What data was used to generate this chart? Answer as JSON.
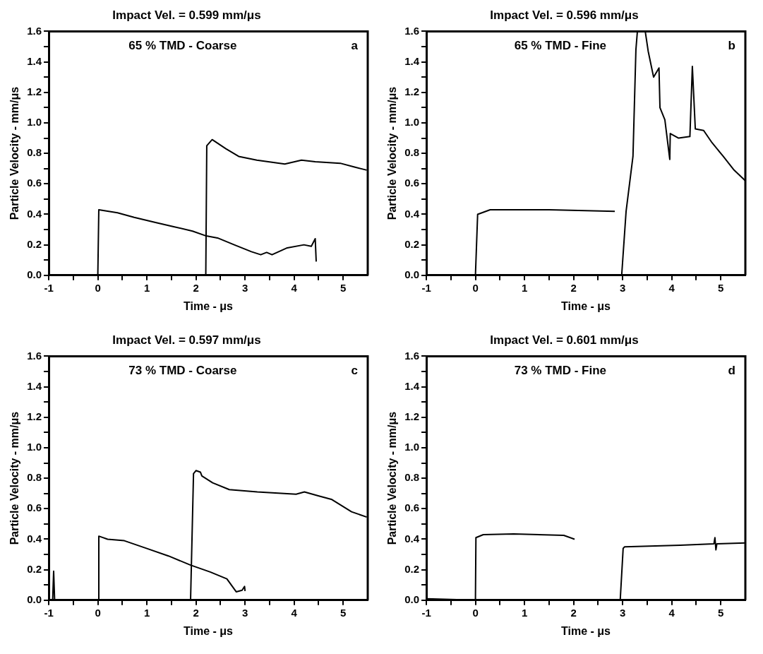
{
  "chart_data": [
    {
      "type": "line",
      "title": "Impact Vel. = 0.599 mm/μs",
      "xlabel": "Time - μs",
      "ylabel": "Particle Velocity - mm/μs",
      "annotations": [
        "65 % TMD - Coarse",
        "a"
      ],
      "xlim": [
        -1,
        5.5
      ],
      "ylim": [
        0,
        1.6
      ],
      "xticks": [
        -1,
        {
          "value": -0.5,
          "label": null
        },
        0,
        {
          "value": 0.5,
          "label": null
        },
        1,
        {
          "value": 1.5,
          "label": null
        },
        2,
        {
          "value": 2.5,
          "label": null
        },
        3,
        {
          "value": 3.5,
          "label": null
        },
        4,
        {
          "value": 4.5,
          "label": null
        },
        5
      ],
      "yticks": [
        {
          "value": 0,
          "label": "0.0"
        },
        {
          "value": 0.1,
          "label": null
        },
        0.2,
        {
          "value": 0.3,
          "label": null
        },
        0.4,
        {
          "value": 0.5,
          "label": null
        },
        0.6,
        {
          "value": 0.7,
          "label": null
        },
        0.8,
        {
          "value": 0.9,
          "label": null
        },
        {
          "value": 1,
          "label": "1.0"
        },
        {
          "value": 1.1,
          "label": null
        },
        1.2,
        {
          "value": 1.3,
          "label": null
        },
        1.4,
        {
          "value": 1.5,
          "label": null
        },
        1.6
      ],
      "series": [
        {
          "color": "#000000",
          "x": [
            -1,
            0,
            0.02,
            0.4,
            0.74,
            1.19,
            1.53,
            1.93,
            2.19,
            2.44,
            2.78,
            3.13,
            3.32,
            3.44,
            3.55,
            3.86,
            4.2,
            4.35,
            4.43,
            4.45
          ],
          "values": [
            0,
            0,
            0.43,
            0.41,
            0.38,
            0.345,
            0.32,
            0.29,
            0.26,
            0.245,
            0.2,
            0.155,
            0.135,
            0.15,
            0.135,
            0.18,
            0.2,
            0.19,
            0.24,
            0.09
          ]
        },
        {
          "color": "#000000",
          "x": [
            -1,
            2.2,
            2.22,
            2.33,
            2.61,
            2.87,
            3.24,
            3.81,
            4.15,
            4.43,
            4.94,
            5.23,
            5.48
          ],
          "values": [
            0,
            0,
            0.85,
            0.89,
            0.83,
            0.78,
            0.755,
            0.73,
            0.755,
            0.745,
            0.735,
            0.71,
            0.69
          ]
        }
      ]
    },
    {
      "type": "line",
      "title": "Impact Vel. = 0.596 mm/μs",
      "xlabel": "Time - μs",
      "ylabel": "Particle Velocity - mm/μs",
      "annotations": [
        "65 % TMD - Fine",
        "b"
      ],
      "xlim": [
        -1,
        5.5
      ],
      "ylim": [
        0,
        1.6
      ],
      "xticks": [
        -1,
        {
          "value": -0.5,
          "label": null
        },
        0,
        {
          "value": 0.5,
          "label": null
        },
        1,
        {
          "value": 1.5,
          "label": null
        },
        2,
        {
          "value": 2.5,
          "label": null
        },
        3,
        {
          "value": 3.5,
          "label": null
        },
        4,
        {
          "value": 4.5,
          "label": null
        },
        5
      ],
      "yticks": [
        {
          "value": 0,
          "label": "0.0"
        },
        {
          "value": 0.1,
          "label": null
        },
        0.2,
        {
          "value": 0.3,
          "label": null
        },
        0.4,
        {
          "value": 0.5,
          "label": null
        },
        0.6,
        {
          "value": 0.7,
          "label": null
        },
        0.8,
        {
          "value": 0.9,
          "label": null
        },
        {
          "value": 1,
          "label": "1.0"
        },
        {
          "value": 1.1,
          "label": null
        },
        1.2,
        {
          "value": 1.3,
          "label": null
        },
        1.4,
        {
          "value": 1.5,
          "label": null
        },
        1.6
      ],
      "series": [
        {
          "color": "#000000",
          "x": [
            -1,
            0,
            0.045,
            0.3,
            1.5,
            2.84
          ],
          "values": [
            0,
            0,
            0.4,
            0.43,
            0.43,
            0.42
          ]
        },
        {
          "color": "#000000",
          "x": [
            -1,
            2.98,
            3.07,
            3.21,
            3.27,
            3.3,
            3.46,
            3.52,
            3.63,
            3.74,
            3.76,
            3.86,
            3.96,
            3.97,
            4.14,
            4.37,
            4.42,
            4.48,
            4.65,
            4.82,
            5.05,
            5.27,
            5.5
          ],
          "values": [
            0,
            0,
            0.42,
            0.78,
            1.48,
            1.6,
            1.6,
            1.47,
            1.3,
            1.36,
            1.1,
            1.02,
            0.76,
            0.93,
            0.9,
            0.91,
            1.37,
            0.96,
            0.95,
            0.87,
            0.78,
            0.69,
            0.62
          ]
        }
      ]
    },
    {
      "type": "line",
      "title": "Impact Vel. = 0.597 mm/μs",
      "xlabel": "Time - μs",
      "ylabel": "Particle Velocity - mm/μs",
      "annotations": [
        "73 % TMD - Coarse",
        "c"
      ],
      "xlim": [
        -1,
        5.5
      ],
      "ylim": [
        0,
        1.6
      ],
      "xticks": [
        -1,
        {
          "value": -0.5,
          "label": null
        },
        0,
        {
          "value": 0.5,
          "label": null
        },
        1,
        {
          "value": 1.5,
          "label": null
        },
        2,
        {
          "value": 2.5,
          "label": null
        },
        3,
        {
          "value": 3.5,
          "label": null
        },
        4,
        {
          "value": 4.5,
          "label": null
        },
        5
      ],
      "yticks": [
        {
          "value": 0,
          "label": "0.0"
        },
        {
          "value": 0.1,
          "label": null
        },
        0.2,
        {
          "value": 0.3,
          "label": null
        },
        0.4,
        {
          "value": 0.5,
          "label": null
        },
        0.6,
        {
          "value": 0.7,
          "label": null
        },
        0.8,
        {
          "value": 0.9,
          "label": null
        },
        {
          "value": 1,
          "label": "1.0"
        },
        {
          "value": 1.1,
          "label": null
        },
        1.2,
        {
          "value": 1.3,
          "label": null
        },
        1.4,
        {
          "value": 1.5,
          "label": null
        },
        1.6
      ],
      "series": [
        {
          "color": "#000000",
          "x": [
            -1,
            -0.92,
            -0.9,
            -0.88,
            0.01,
            0.02,
            0.2,
            0.54,
            0.99,
            1.44,
            1.89,
            2.29,
            2.63,
            2.82,
            2.94,
            2.99,
            3.0
          ],
          "values": [
            0,
            0,
            0.19,
            0,
            0,
            0.42,
            0.4,
            0.39,
            0.34,
            0.29,
            0.23,
            0.185,
            0.14,
            0.055,
            0.065,
            0.09,
            0.06
          ]
        },
        {
          "color": "#000000",
          "x": [
            -1,
            1.89,
            1.95,
            2.0,
            2.09,
            2.12,
            2.34,
            2.68,
            3.25,
            4.04,
            4.21,
            4.49,
            4.77,
            5.17,
            5.48
          ],
          "values": [
            0,
            0,
            0.83,
            0.85,
            0.84,
            0.815,
            0.77,
            0.725,
            0.71,
            0.695,
            0.71,
            0.685,
            0.66,
            0.58,
            0.545
          ]
        }
      ]
    },
    {
      "type": "line",
      "title": "Impact Vel. = 0.601 mm/μs",
      "xlabel": "Time - μs",
      "ylabel": "Particle Velocity - mm/μs",
      "annotations": [
        "73 % TMD - Fine",
        "d"
      ],
      "xlim": [
        -1,
        5.5
      ],
      "ylim": [
        0,
        1.6
      ],
      "xticks": [
        -1,
        {
          "value": -0.5,
          "label": null
        },
        0,
        {
          "value": 0.5,
          "label": null
        },
        1,
        {
          "value": 1.5,
          "label": null
        },
        2,
        {
          "value": 2.5,
          "label": null
        },
        3,
        {
          "value": 3.5,
          "label": null
        },
        4,
        {
          "value": 4.5,
          "label": null
        },
        5
      ],
      "yticks": [
        {
          "value": 0,
          "label": "0.0"
        },
        {
          "value": 0.1,
          "label": null
        },
        0.2,
        {
          "value": 0.3,
          "label": null
        },
        0.4,
        {
          "value": 0.5,
          "label": null
        },
        0.6,
        {
          "value": 0.7,
          "label": null
        },
        0.8,
        {
          "value": 0.9,
          "label": null
        },
        {
          "value": 1,
          "label": "1.0"
        },
        {
          "value": 1.1,
          "label": null
        },
        1.2,
        {
          "value": 1.3,
          "label": null
        },
        1.4,
        {
          "value": 1.5,
          "label": null
        },
        1.6
      ],
      "series": [
        {
          "color": "#000000",
          "x": [
            -1,
            0,
            0.01,
            0.16,
            0.78,
            1.8,
            2.02
          ],
          "values": [
            0.01,
            0,
            0.41,
            0.43,
            0.435,
            0.425,
            0.4
          ]
        },
        {
          "color": "#000000",
          "x": [
            -1,
            2.95,
            3.01,
            3.04,
            4.17,
            4.86,
            4.88,
            4.9,
            4.92,
            5.5
          ],
          "values": [
            0,
            0,
            0.34,
            0.35,
            0.36,
            0.37,
            0.41,
            0.33,
            0.37,
            0.375
          ]
        }
      ]
    }
  ]
}
